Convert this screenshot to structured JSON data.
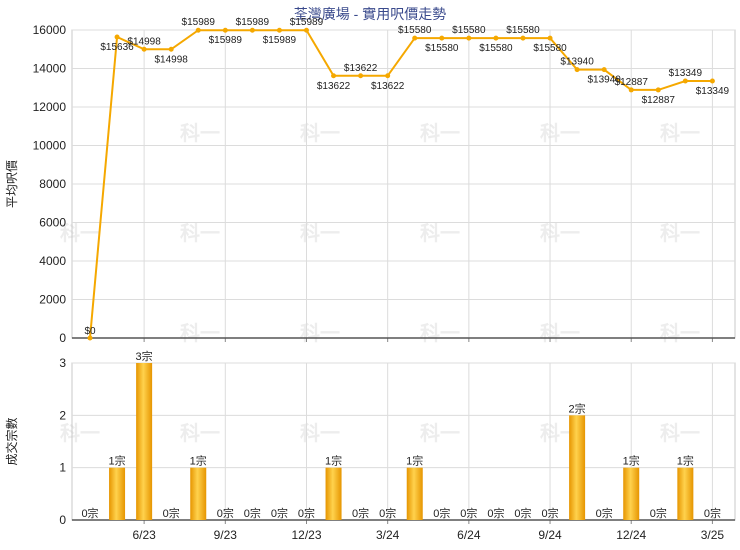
{
  "chart_data": [
    {
      "type": "line",
      "title": "荃灣廣場 - 實用呎價走勢",
      "ylabel": "平均呎價",
      "ylim": [
        0,
        16000
      ],
      "yticks": [
        0,
        2000,
        4000,
        6000,
        8000,
        10000,
        12000,
        14000,
        16000
      ],
      "x": [
        "4/23",
        "5/23",
        "6/23",
        "7/23",
        "8/23",
        "9/23",
        "10/23",
        "11/23",
        "12/23",
        "1/24",
        "2/24",
        "3/24",
        "4/24",
        "5/24",
        "6/24",
        "7/24",
        "8/24",
        "9/24",
        "10/24",
        "11/24",
        "12/24",
        "1/25",
        "2/25",
        "3/25"
      ],
      "xtick_labels": [
        "6/23",
        "9/23",
        "12/23",
        "3/24",
        "6/24",
        "9/24",
        "12/24",
        "3/25"
      ],
      "series": [
        {
          "values": [
            0,
            15636,
            14998,
            14998,
            15989,
            15989,
            15989,
            15989,
            15989,
            13622,
            13622,
            13622,
            15580,
            15580,
            15580,
            15580,
            15580,
            15580,
            13940,
            13940,
            12887,
            12887,
            13349,
            13349
          ]
        }
      ],
      "data_labels": [
        "$0",
        "$15636",
        "$14998",
        "$14998",
        "$15989",
        "$15989",
        "$15989",
        "$15989",
        "$15989",
        "$13622",
        "$13622",
        "$13622",
        "$15580",
        "$15580",
        "$15580",
        "$15580",
        "$15580",
        "$15580",
        "$13940",
        "$13940",
        "$12887",
        "$12887",
        "$13349",
        "$13349"
      ],
      "line_color": "#f5a800",
      "grid": true
    },
    {
      "type": "bar",
      "ylabel": "成交宗數",
      "ylim": [
        0,
        3
      ],
      "yticks": [
        0,
        1,
        2,
        3
      ],
      "x": [
        "4/23",
        "5/23",
        "6/23",
        "7/23",
        "8/23",
        "9/23",
        "10/23",
        "11/23",
        "12/23",
        "1/24",
        "2/24",
        "3/24",
        "4/24",
        "5/24",
        "6/24",
        "7/24",
        "8/24",
        "9/24",
        "10/24",
        "11/24",
        "12/24",
        "1/25",
        "2/25",
        "3/25"
      ],
      "xtick_labels": [
        "6/23",
        "9/23",
        "12/23",
        "3/24",
        "6/24",
        "9/24",
        "12/24",
        "3/25"
      ],
      "values": [
        0,
        1,
        3,
        0,
        1,
        0,
        0,
        0,
        0,
        1,
        0,
        0,
        1,
        0,
        0,
        0,
        0,
        0,
        2,
        0,
        1,
        0,
        1,
        0
      ],
      "data_labels": [
        "0宗",
        "1宗",
        "3宗",
        "0宗",
        "1宗",
        "0宗",
        "0宗",
        "0宗",
        "0宗",
        "1宗",
        "0宗",
        "0宗",
        "1宗",
        "0宗",
        "0宗",
        "0宗",
        "0宗",
        "0宗",
        "2宗",
        "0宗",
        "1宗",
        "0宗",
        "1宗",
        "0宗"
      ],
      "bar_color": "#f5a800",
      "grid": true
    }
  ],
  "watermark": "科一"
}
